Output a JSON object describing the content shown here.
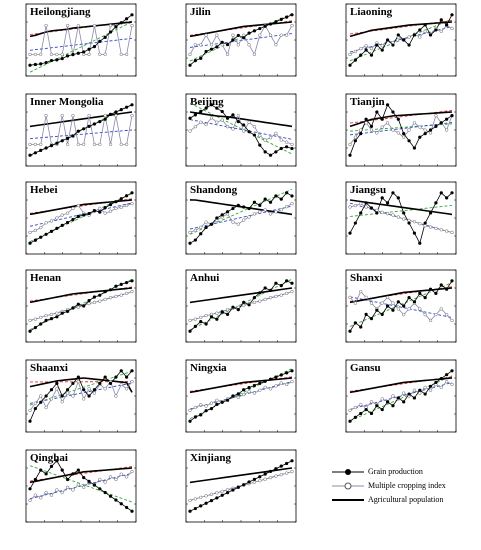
{
  "legend": {
    "grain": "Grain production",
    "mci": "Multiple cropping index",
    "pop": "Agricultural population"
  },
  "colors": {
    "grain": "#000000",
    "mci": "#8888aa",
    "pop": "#bb2222",
    "fit_grain": "#33aa33",
    "fit_mci": "#3344cc",
    "fit_pop": "#dd3333"
  },
  "chart_data": [
    {
      "type": "line",
      "title": "Heilongjiang",
      "grain": [
        2100,
        2150,
        2200,
        2300,
        2450,
        2500,
        2600,
        2800,
        2900,
        3000,
        3100,
        3300,
        3500,
        3900,
        4200,
        4600,
        5000,
        5300,
        5600,
        5900
      ],
      "mci": [
        100,
        100,
        100,
        101,
        100,
        100,
        100,
        101,
        100,
        101,
        100,
        100,
        101,
        100,
        100,
        101,
        101,
        100,
        100,
        101
      ],
      "pop": [
        1600,
        1620,
        1650,
        1680,
        1700,
        1710,
        1720,
        1730,
        1750,
        1760,
        1770,
        1780,
        1790,
        1800,
        1810,
        1820,
        1830,
        1840,
        1850,
        1860
      ]
    },
    {
      "type": "line",
      "title": "Jilin",
      "grain": [
        1200,
        1400,
        1500,
        1800,
        1900,
        2000,
        2200,
        2100,
        2300,
        2500,
        2400,
        2600,
        2700,
        2800,
        2900,
        3000,
        3100,
        3200,
        3300,
        3400
      ],
      "mci": [
        98,
        99,
        99,
        100,
        99,
        100,
        99,
        98,
        100,
        99,
        100,
        99,
        98,
        100,
        101,
        100,
        99,
        100,
        100,
        101
      ],
      "pop": [
        1100,
        1110,
        1120,
        1130,
        1140,
        1150,
        1160,
        1170,
        1180,
        1190,
        1200,
        1205,
        1210,
        1215,
        1220,
        1225,
        1230,
        1235,
        1240,
        1245
      ]
    },
    {
      "type": "line",
      "title": "Liaoning",
      "grain": [
        1300,
        1400,
        1500,
        1600,
        1500,
        1700,
        1600,
        1800,
        1700,
        1900,
        1800,
        1700,
        1900,
        2000,
        2100,
        1900,
        2000,
        2200,
        2100,
        2300
      ],
      "mci": [
        102,
        103,
        104,
        105,
        104,
        106,
        105,
        107,
        106,
        108,
        107,
        108,
        109,
        108,
        110,
        109,
        111,
        110,
        112,
        111
      ],
      "pop": [
        1100,
        1120,
        1140,
        1160,
        1180,
        1190,
        1200,
        1210,
        1220,
        1230,
        1240,
        1250,
        1255,
        1260,
        1265,
        1270,
        1275,
        1280,
        1285,
        1290
      ]
    },
    {
      "type": "line",
      "title": "Inner Mongolia",
      "grain": [
        400,
        500,
        600,
        700,
        800,
        900,
        1000,
        1100,
        1200,
        1400,
        1500,
        1600,
        1700,
        1800,
        1900,
        2100,
        2200,
        2300,
        2400,
        2500
      ],
      "mci": [
        96,
        96,
        96,
        97,
        96,
        96,
        97,
        96,
        97,
        96,
        96,
        97,
        96,
        96,
        97,
        96,
        97,
        96,
        96,
        97
      ],
      "pop": [
        1100,
        1110,
        1120,
        1130,
        1140,
        1150,
        1160,
        1170,
        1180,
        1190,
        1200,
        1210,
        1220,
        1230,
        1240,
        1250,
        1260,
        1270,
        1280,
        1290
      ]
    },
    {
      "type": "line",
      "title": "Beijing",
      "grain": [
        200,
        210,
        220,
        230,
        240,
        230,
        220,
        200,
        210,
        190,
        180,
        160,
        150,
        120,
        100,
        90,
        100,
        110,
        115,
        110
      ],
      "mci": [
        130,
        140,
        150,
        145,
        160,
        150,
        155,
        140,
        135,
        165,
        130,
        150,
        140,
        120,
        110,
        115,
        125,
        110,
        105,
        100
      ],
      "pop": [
        450,
        440,
        430,
        420,
        410,
        400,
        395,
        390,
        380,
        370,
        360,
        350,
        340,
        330,
        320,
        310,
        300,
        290,
        280,
        270
      ]
    },
    {
      "type": "line",
      "title": "Tianjin",
      "grain": [
        120,
        140,
        150,
        170,
        160,
        180,
        170,
        190,
        180,
        170,
        150,
        140,
        130,
        145,
        150,
        155,
        160,
        165,
        170,
        175
      ],
      "mci": [
        130,
        135,
        140,
        145,
        140,
        138,
        142,
        145,
        140,
        138,
        135,
        140,
        145,
        142,
        140,
        138,
        150,
        145,
        140,
        150
      ],
      "pop": [
        310,
        320,
        330,
        340,
        350,
        355,
        360,
        365,
        370,
        372,
        374,
        376,
        378,
        380,
        382,
        384,
        386,
        388,
        390,
        392
      ]
    },
    {
      "type": "line",
      "title": "Hebei",
      "grain": [
        2000,
        2100,
        2200,
        2300,
        2400,
        2500,
        2600,
        2700,
        2800,
        2900,
        2950,
        3000,
        3100,
        3050,
        3200,
        3300,
        3400,
        3500,
        3600,
        3700
      ],
      "mci": [
        140,
        142,
        145,
        150,
        152,
        155,
        158,
        160,
        165,
        168,
        160,
        158,
        162,
        165,
        160,
        162,
        165,
        166,
        168,
        170
      ],
      "pop": [
        3800,
        3820,
        3840,
        3860,
        3880,
        3900,
        3920,
        3940,
        3960,
        3980,
        4000,
        4010,
        4020,
        4030,
        4040,
        4050,
        4060,
        4070,
        4080,
        4090
      ]
    },
    {
      "type": "line",
      "title": "Shandong",
      "grain": [
        3000,
        3100,
        3300,
        3500,
        3600,
        3800,
        3900,
        4000,
        4100,
        4200,
        4150,
        4100,
        4300,
        4200,
        4400,
        4300,
        4500,
        4400,
        4600,
        4500
      ],
      "mci": [
        140,
        142,
        145,
        150,
        148,
        152,
        155,
        158,
        150,
        148,
        152,
        155,
        158,
        160,
        162,
        158,
        160,
        162,
        165,
        168
      ],
      "pop": [
        6000,
        6000,
        5950,
        5900,
        5850,
        5800,
        5750,
        5700,
        5650,
        5600,
        5550,
        5500,
        5450,
        5400,
        5350,
        5300,
        5250,
        5200,
        5150,
        5100
      ]
    },
    {
      "type": "line",
      "title": "Jiangsu",
      "grain": [
        3000,
        3100,
        3200,
        3300,
        3250,
        3200,
        3350,
        3300,
        3400,
        3350,
        3200,
        3100,
        3000,
        2900,
        3100,
        3200,
        3300,
        3400,
        3350,
        3400
      ],
      "mci": [
        180,
        182,
        185,
        180,
        178,
        175,
        172,
        170,
        168,
        165,
        162,
        160,
        158,
        155,
        152,
        150,
        148,
        146,
        144,
        142
      ],
      "pop": [
        4500,
        4400,
        4300,
        4200,
        4100,
        4000,
        3900,
        3800,
        3700,
        3600,
        3500,
        3400,
        3300,
        3200,
        3100,
        3000,
        2900,
        2800,
        2700,
        2600
      ]
    },
    {
      "type": "line",
      "title": "Henan",
      "grain": [
        2800,
        3000,
        3200,
        3400,
        3500,
        3600,
        3800,
        3900,
        4100,
        4300,
        4200,
        4500,
        4700,
        4800,
        5000,
        5100,
        5300,
        5400,
        5500,
        5600
      ],
      "mci": [
        160,
        162,
        165,
        168,
        170,
        172,
        175,
        178,
        180,
        182,
        185,
        188,
        190,
        192,
        195,
        198,
        200,
        202,
        205,
        208
      ],
      "pop": [
        7000,
        7100,
        7200,
        7300,
        7400,
        7500,
        7600,
        7700,
        7800,
        7850,
        7900,
        7950,
        8000,
        8050,
        8100,
        8150,
        8200,
        8250,
        8300,
        8350
      ]
    },
    {
      "type": "line",
      "title": "Anhui",
      "grain": [
        2100,
        2200,
        2300,
        2250,
        2400,
        2350,
        2500,
        2450,
        2600,
        2550,
        2700,
        2650,
        2800,
        2900,
        3000,
        2950,
        3100,
        3050,
        3150,
        3100
      ],
      "mci": [
        180,
        182,
        185,
        188,
        190,
        192,
        195,
        198,
        200,
        202,
        205,
        208,
        210,
        212,
        215,
        218,
        220,
        222,
        225,
        228
      ],
      "pop": [
        4000,
        4050,
        4100,
        4150,
        4200,
        4250,
        4300,
        4350,
        4400,
        4450,
        4500,
        4550,
        4600,
        4650,
        4700,
        4750,
        4800,
        4850,
        4900,
        4950
      ]
    },
    {
      "type": "line",
      "title": "Shanxi",
      "grain": [
        700,
        800,
        750,
        900,
        850,
        950,
        900,
        1000,
        950,
        1050,
        1000,
        1100,
        1050,
        1150,
        1100,
        1200,
        1150,
        1250,
        1200,
        1300
      ],
      "mci": [
        110,
        108,
        112,
        110,
        108,
        106,
        108,
        110,
        108,
        106,
        104,
        106,
        108,
        106,
        104,
        102,
        104,
        106,
        104,
        102
      ],
      "pop": [
        1800,
        1820,
        1840,
        1860,
        1880,
        1900,
        1920,
        1940,
        1960,
        1980,
        2000,
        2010,
        2020,
        2030,
        2040,
        2050,
        2060,
        2070,
        2080,
        2090
      ]
    },
    {
      "type": "line",
      "title": "Shaanxi",
      "grain": [
        800,
        900,
        950,
        1000,
        1050,
        1100,
        1000,
        1050,
        1100,
        1150,
        1050,
        1000,
        1050,
        1100,
        1150,
        1100,
        1150,
        1200,
        1150,
        1200
      ],
      "mci": [
        130,
        135,
        140,
        132,
        138,
        145,
        136,
        142,
        140,
        150,
        138,
        145,
        142,
        148,
        145,
        150,
        140,
        148,
        145,
        150
      ],
      "pop": [
        2200,
        2220,
        2240,
        2260,
        2280,
        2300,
        2310,
        2320,
        2330,
        2340,
        2350,
        2340,
        2330,
        2320,
        2310,
        2300,
        2290,
        2280,
        2270,
        2100
      ]
    },
    {
      "type": "line",
      "title": "Ningxia",
      "grain": [
        150,
        170,
        180,
        200,
        210,
        230,
        240,
        250,
        270,
        280,
        300,
        310,
        320,
        330,
        340,
        350,
        360,
        370,
        380,
        390
      ],
      "mci": [
        100,
        102,
        104,
        103,
        105,
        107,
        106,
        108,
        110,
        109,
        111,
        113,
        112,
        114,
        116,
        115,
        117,
        119,
        118,
        120
      ],
      "pop": [
        300,
        310,
        320,
        330,
        340,
        350,
        360,
        370,
        380,
        390,
        400,
        405,
        410,
        415,
        420,
        425,
        430,
        435,
        440,
        445
      ]
    },
    {
      "type": "line",
      "title": "Gansu",
      "grain": [
        600,
        650,
        700,
        750,
        700,
        800,
        750,
        850,
        800,
        900,
        850,
        950,
        900,
        1000,
        950,
        1050,
        1100,
        1150,
        1200,
        1250
      ],
      "mci": [
        90,
        91,
        92,
        91,
        93,
        92,
        94,
        93,
        95,
        94,
        96,
        95,
        97,
        96,
        98,
        97,
        99,
        98,
        100,
        99
      ],
      "pop": [
        1600,
        1620,
        1640,
        1660,
        1680,
        1700,
        1720,
        1740,
        1760,
        1780,
        1800,
        1810,
        1820,
        1830,
        1840,
        1850,
        1860,
        1870,
        1880,
        1890
      ]
    },
    {
      "type": "line",
      "title": "Qinghai",
      "grain": [
        120,
        125,
        130,
        128,
        132,
        135,
        130,
        125,
        128,
        130,
        126,
        124,
        122,
        120,
        118,
        116,
        114,
        112,
        110,
        108
      ],
      "mci": [
        90,
        92,
        91,
        93,
        92,
        94,
        93,
        95,
        94,
        96,
        95,
        97,
        96,
        98,
        97,
        99,
        98,
        100,
        99,
        101
      ],
      "pop": [
        260,
        265,
        270,
        275,
        280,
        285,
        290,
        295,
        300,
        305,
        310,
        312,
        314,
        316,
        318,
        320,
        322,
        324,
        326,
        328
      ]
    },
    {
      "type": "line",
      "title": "Xinjiang",
      "grain": [
        500,
        550,
        600,
        650,
        700,
        750,
        800,
        850,
        900,
        950,
        1000,
        1050,
        1100,
        1150,
        1200,
        1250,
        1300,
        1350,
        1400,
        1450
      ],
      "mci": [
        100,
        102,
        104,
        106,
        108,
        110,
        112,
        114,
        116,
        118,
        120,
        122,
        124,
        126,
        128,
        130,
        132,
        134,
        136,
        138
      ],
      "pop": [
        800,
        820,
        840,
        860,
        880,
        900,
        920,
        940,
        960,
        980,
        1000,
        1020,
        1040,
        1060,
        1080,
        1100,
        1120,
        1140,
        1160,
        1180
      ]
    }
  ]
}
